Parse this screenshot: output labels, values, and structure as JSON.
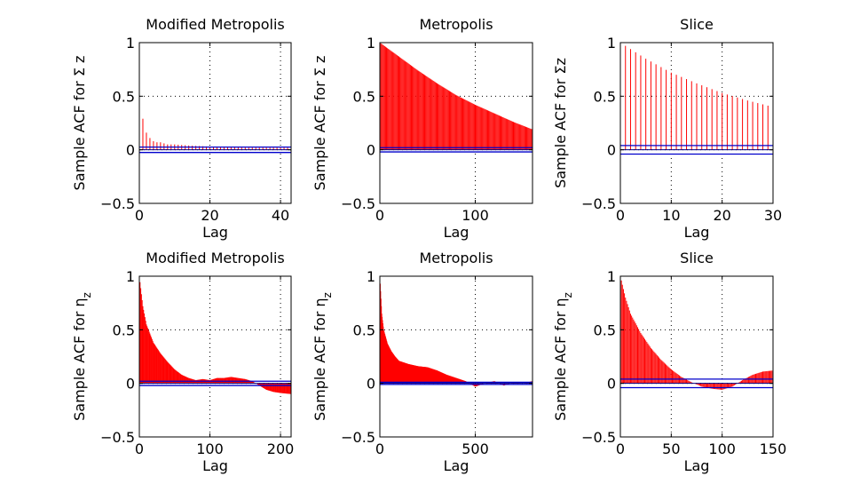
{
  "colors": {
    "stem": "#ff0000",
    "bound": "#0000cc",
    "zero": "#000080",
    "grid": "#000000",
    "axes": "#000000"
  },
  "chart_data": [
    {
      "type": "stem",
      "title": "Modified Metropolis",
      "xlabel": "Lag",
      "ylabel": "Sample ACF for Σ z",
      "xlim": [
        0,
        43
      ],
      "ylim": [
        -0.5,
        1
      ],
      "xticks": [
        0,
        20,
        40
      ],
      "yticks": [
        -0.5,
        0,
        0.5,
        1
      ],
      "tick_labels_x": [
        "0",
        "20",
        "40"
      ],
      "tick_labels_y": [
        "−0.5",
        "0",
        "0.5",
        "1"
      ],
      "grid": true,
      "bounds": [
        0.025,
        -0.025
      ],
      "series": [
        {
          "lag_step": 1,
          "points": [
            [
              0,
              1
            ],
            [
              1,
              0.29
            ],
            [
              2,
              0.16
            ],
            [
              3,
              0.11
            ],
            [
              4,
              0.08
            ],
            [
              5,
              0.07
            ],
            [
              6,
              0.07
            ],
            [
              8,
              0.05
            ],
            [
              10,
              0.05
            ],
            [
              14,
              0.04
            ],
            [
              20,
              0.03
            ],
            [
              30,
              0.02
            ],
            [
              43,
              0.02
            ]
          ]
        }
      ]
    },
    {
      "type": "stem",
      "title": "Metropolis",
      "xlabel": "Lag",
      "ylabel": "Sample ACF for Σ z",
      "xlim": [
        0,
        160
      ],
      "ylim": [
        -0.5,
        1
      ],
      "xticks": [
        0,
        100
      ],
      "yticks": [
        -0.5,
        0,
        0.5,
        1
      ],
      "tick_labels_x": [
        "0",
        "100"
      ],
      "tick_labels_y": [
        "−0.5",
        "0",
        "0.5",
        "1"
      ],
      "grid": true,
      "bounds": [
        0.02,
        -0.02
      ],
      "series": [
        {
          "lag_step": 1,
          "points": [
            [
              0,
              1
            ],
            [
              20,
              0.87
            ],
            [
              40,
              0.74
            ],
            [
              60,
              0.62
            ],
            [
              80,
              0.51
            ],
            [
              100,
              0.42
            ],
            [
              120,
              0.34
            ],
            [
              140,
              0.26
            ],
            [
              160,
              0.19
            ]
          ]
        }
      ]
    },
    {
      "type": "stem",
      "title": "Slice",
      "xlabel": "Lag",
      "ylabel": "Sample ACF for Σz",
      "xlim": [
        0,
        30
      ],
      "ylim": [
        -0.5,
        1
      ],
      "xticks": [
        0,
        10,
        20,
        30
      ],
      "yticks": [
        -0.5,
        0,
        0.5,
        1
      ],
      "tick_labels_x": [
        "0",
        "10",
        "20",
        "30"
      ],
      "tick_labels_y": [
        "−0.5",
        "0",
        "0.5",
        "1"
      ],
      "grid": true,
      "bounds": [
        0.04,
        -0.04
      ],
      "series": [
        {
          "lag_step": 1,
          "points": [
            [
              0,
              1
            ],
            [
              5,
              0.85
            ],
            [
              10,
              0.72
            ],
            [
              15,
              0.62
            ],
            [
              20,
              0.53
            ],
            [
              25,
              0.46
            ],
            [
              30,
              0.4
            ]
          ]
        }
      ]
    },
    {
      "type": "stem",
      "title": "Modified Metropolis",
      "xlabel": "Lag",
      "ylabel": "Sample ACF for η",
      "ylabel_sub": "z",
      "xlim": [
        0,
        215
      ],
      "ylim": [
        -0.5,
        1
      ],
      "xticks": [
        0,
        100,
        200
      ],
      "yticks": [
        -0.5,
        0,
        0.5,
        1
      ],
      "tick_labels_x": [
        "0",
        "100",
        "200"
      ],
      "tick_labels_y": [
        "−0.5",
        "0",
        "0.5",
        "1"
      ],
      "grid": true,
      "bounds": [
        0.02,
        -0.02
      ],
      "series": [
        {
          "lag_step": 1,
          "points": [
            [
              0,
              1
            ],
            [
              5,
              0.72
            ],
            [
              10,
              0.55
            ],
            [
              20,
              0.38
            ],
            [
              30,
              0.28
            ],
            [
              40,
              0.2
            ],
            [
              50,
              0.13
            ],
            [
              60,
              0.08
            ],
            [
              70,
              0.05
            ],
            [
              80,
              0.03
            ],
            [
              90,
              0.04
            ],
            [
              100,
              0.03
            ],
            [
              110,
              0.05
            ],
            [
              120,
              0.05
            ],
            [
              130,
              0.06
            ],
            [
              140,
              0.05
            ],
            [
              150,
              0.04
            ],
            [
              160,
              0.02
            ],
            [
              170,
              -0.02
            ],
            [
              180,
              -0.06
            ],
            [
              190,
              -0.08
            ],
            [
              200,
              -0.09
            ],
            [
              215,
              -0.1
            ]
          ]
        }
      ]
    },
    {
      "type": "stem",
      "title": "Metropolis",
      "xlabel": "Lag",
      "ylabel": "Sample ACF for η",
      "ylabel_sub": "z",
      "xlim": [
        0,
        800
      ],
      "ylim": [
        -0.5,
        1
      ],
      "xticks": [
        0,
        500
      ],
      "yticks": [
        -0.5,
        0,
        0.5,
        1
      ],
      "tick_labels_x": [
        "0",
        "500"
      ],
      "tick_labels_y": [
        "−0.5",
        "0",
        "0.5",
        "1"
      ],
      "grid": true,
      "bounds": [
        0.01,
        -0.01
      ],
      "series": [
        {
          "lag_step": 2,
          "points": [
            [
              0,
              1
            ],
            [
              10,
              0.65
            ],
            [
              20,
              0.5
            ],
            [
              40,
              0.37
            ],
            [
              60,
              0.3
            ],
            [
              80,
              0.25
            ],
            [
              100,
              0.21
            ],
            [
              150,
              0.18
            ],
            [
              200,
              0.16
            ],
            [
              250,
              0.15
            ],
            [
              300,
              0.12
            ],
            [
              350,
              0.08
            ],
            [
              400,
              0.05
            ],
            [
              450,
              0.02
            ],
            [
              500,
              -0.03
            ],
            [
              550,
              0.0
            ],
            [
              600,
              0.02
            ],
            [
              650,
              -0.02
            ],
            [
              700,
              0.01
            ],
            [
              750,
              0.0
            ],
            [
              800,
              0.02
            ]
          ]
        }
      ]
    },
    {
      "type": "stem",
      "title": "Slice",
      "xlabel": "Lag",
      "ylabel": "Sample ACF for η",
      "ylabel_sub": "z",
      "xlim": [
        0,
        150
      ],
      "ylim": [
        -0.5,
        1
      ],
      "xticks": [
        0,
        50,
        100,
        150
      ],
      "yticks": [
        -0.5,
        0,
        0.5,
        1
      ],
      "tick_labels_x": [
        "0",
        "50",
        "100",
        "150"
      ],
      "tick_labels_y": [
        "−0.5",
        "0",
        "0.5",
        "1"
      ],
      "grid": true,
      "bounds": [
        0.04,
        -0.04
      ],
      "series": [
        {
          "lag_step": 1,
          "points": [
            [
              0,
              1
            ],
            [
              5,
              0.8
            ],
            [
              10,
              0.65
            ],
            [
              20,
              0.47
            ],
            [
              30,
              0.33
            ],
            [
              40,
              0.22
            ],
            [
              50,
              0.13
            ],
            [
              60,
              0.06
            ],
            [
              70,
              0.01
            ],
            [
              80,
              -0.03
            ],
            [
              90,
              -0.05
            ],
            [
              100,
              -0.06
            ],
            [
              110,
              -0.03
            ],
            [
              120,
              0.03
            ],
            [
              130,
              0.08
            ],
            [
              140,
              0.11
            ],
            [
              150,
              0.12
            ]
          ]
        }
      ]
    }
  ]
}
